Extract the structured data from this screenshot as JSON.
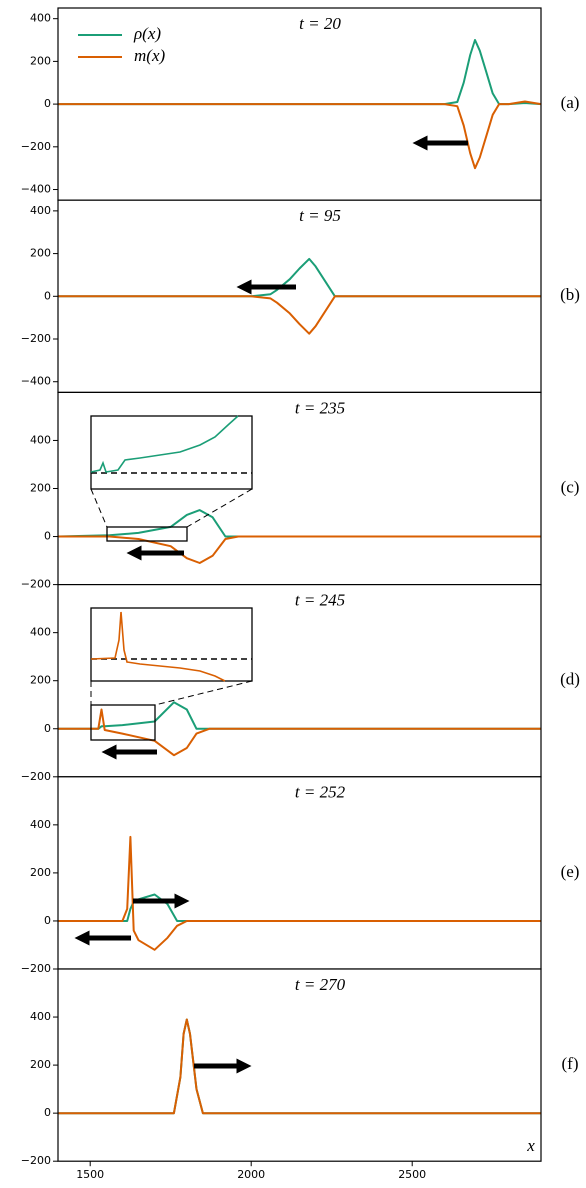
{
  "chart_data": [
    {
      "type": "line",
      "title": "t = 20",
      "panel_label": "(a)",
      "xlim": [
        1400,
        2900
      ],
      "xticks": [
        1500,
        2000,
        2500
      ],
      "ylim": [
        -450,
        450
      ],
      "yticks": [
        {
          "value": -400,
          "label": "−400"
        },
        {
          "value": -200,
          "label": "−200"
        },
        0,
        200,
        400
      ],
      "legend": "upper left",
      "x": [
        1400,
        1600,
        1800,
        2000,
        2200,
        2400,
        2600,
        2640,
        2660,
        2680,
        2695,
        2710,
        2730,
        2750,
        2770,
        2800,
        2850,
        2900
      ],
      "series": [
        {
          "name": "ρ(x)",
          "color": "#1b9e77",
          "values": [
            0,
            0,
            0,
            0,
            0,
            0,
            0,
            10,
            100,
            230,
            300,
            250,
            150,
            50,
            0,
            0,
            5,
            0
          ]
        },
        {
          "name": "m(x)",
          "color": "#d95f02",
          "values": [
            0,
            0,
            0,
            0,
            0,
            0,
            0,
            -10,
            -100,
            -230,
            -300,
            -250,
            -150,
            -50,
            0,
            0,
            12,
            0
          ]
        }
      ]
    },
    {
      "type": "line",
      "title": "t = 95",
      "panel_label": "(b)",
      "xlim": [
        1400,
        2900
      ],
      "xticks": [
        1500,
        2000,
        2500
      ],
      "ylim": [
        -450,
        450
      ],
      "yticks": [
        {
          "value": -400,
          "label": "−400"
        },
        {
          "value": -200,
          "label": "−200"
        },
        0,
        200,
        400
      ],
      "x": [
        1400,
        1800,
        2000,
        2060,
        2080,
        2120,
        2150,
        2180,
        2200,
        2230,
        2260,
        2400,
        2900
      ],
      "series": [
        {
          "color": "#1b9e77",
          "values": [
            0,
            0,
            0,
            10,
            30,
            80,
            130,
            175,
            140,
            70,
            0,
            0,
            0
          ]
        },
        {
          "color": "#d95f02",
          "values": [
            0,
            0,
            0,
            -10,
            -30,
            -80,
            -130,
            -175,
            -140,
            -70,
            0,
            0,
            0
          ]
        }
      ]
    },
    {
      "type": "line",
      "title": "t = 235",
      "panel_label": "(c)",
      "xlim": [
        1400,
        2900
      ],
      "xticks": [
        1500,
        2000,
        2500
      ],
      "ylim": [
        -200,
        600
      ],
      "yticks": [
        {
          "value": -200,
          "label": "−200"
        },
        0,
        200,
        400
      ],
      "x": [
        1400,
        1560,
        1650,
        1750,
        1800,
        1840,
        1880,
        1920,
        1960,
        2900
      ],
      "series": [
        {
          "color": "#1b9e77",
          "values": [
            0,
            5,
            15,
            40,
            90,
            110,
            80,
            0,
            0,
            0
          ]
        },
        {
          "color": "#d95f02",
          "values": [
            0,
            0,
            -10,
            -40,
            -90,
            -110,
            -80,
            -10,
            0,
            0
          ]
        }
      ]
    },
    {
      "type": "line",
      "title": "t = 245",
      "panel_label": "(d)",
      "xlim": [
        1400,
        2900
      ],
      "xticks": [
        1500,
        2000,
        2500
      ],
      "ylim": [
        -200,
        600
      ],
      "yticks": [
        {
          "value": -200,
          "label": "−200"
        },
        0,
        200,
        400
      ],
      "x": [
        1400,
        1525,
        1535,
        1545,
        1600,
        1700,
        1760,
        1800,
        1830,
        1870,
        2900
      ],
      "series": [
        {
          "color": "#1b9e77",
          "values": [
            0,
            0,
            10,
            10,
            15,
            30,
            110,
            80,
            0,
            0,
            0
          ]
        },
        {
          "color": "#d95f02",
          "values": [
            0,
            0,
            80,
            -5,
            -20,
            -50,
            -110,
            -80,
            -20,
            0,
            0
          ]
        }
      ]
    },
    {
      "type": "line",
      "title": "t = 252",
      "panel_label": "(e)",
      "xlim": [
        1400,
        2900
      ],
      "xticks": [
        1500,
        2000,
        2500
      ],
      "ylim": [
        -200,
        600
      ],
      "yticks": [
        {
          "value": -200,
          "label": "−200"
        },
        0,
        200,
        400
      ],
      "x": [
        1400,
        1600,
        1615,
        1625,
        1635,
        1650,
        1700,
        1740,
        1770,
        1800,
        2900
      ],
      "series": [
        {
          "color": "#1b9e77",
          "values": [
            0,
            0,
            0,
            50,
            80,
            90,
            110,
            70,
            0,
            0,
            0
          ]
        },
        {
          "color": "#d95f02",
          "values": [
            0,
            0,
            50,
            350,
            -40,
            -80,
            -120,
            -70,
            -20,
            0,
            0
          ]
        }
      ]
    },
    {
      "type": "line",
      "title": "t = 270",
      "panel_label": "(f)",
      "xlabel": "x",
      "xlim": [
        1400,
        2900
      ],
      "xticks": [
        1500,
        2000,
        2500
      ],
      "ylim": [
        -200,
        600
      ],
      "yticks": [
        {
          "value": -200,
          "label": "−200"
        },
        0,
        200,
        400
      ],
      "x": [
        1400,
        1760,
        1780,
        1790,
        1800,
        1810,
        1830,
        1850,
        2900
      ],
      "series": [
        {
          "color": "#1b9e77",
          "values": [
            0,
            0,
            150,
            330,
            390,
            330,
            100,
            0,
            0
          ]
        },
        {
          "color": "#d95f02",
          "values": [
            0,
            0,
            150,
            330,
            390,
            330,
            100,
            0,
            0
          ]
        }
      ]
    }
  ]
}
